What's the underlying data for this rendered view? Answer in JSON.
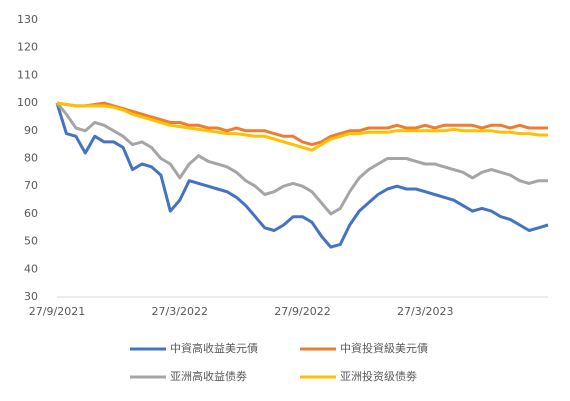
{
  "chart_data": {
    "type": "line",
    "categories": [
      "27/9/2021",
      null,
      null,
      null,
      null,
      null,
      null,
      null,
      null,
      null,
      null,
      null,
      null,
      "27/3/2022",
      null,
      null,
      null,
      null,
      null,
      null,
      null,
      null,
      null,
      null,
      null,
      null,
      "27/9/2022",
      null,
      null,
      null,
      null,
      null,
      null,
      null,
      null,
      null,
      null,
      null,
      null,
      "27/3/2023",
      null,
      null,
      null,
      null,
      null,
      null,
      null,
      null,
      null,
      null,
      null,
      null,
      null
    ],
    "series": [
      {
        "name": "中資高收益美元債",
        "color": "#4472c4",
        "values": [
          100,
          89,
          88,
          82,
          88,
          86,
          86,
          84,
          76,
          78,
          77,
          74,
          61,
          65,
          72,
          71,
          70,
          69,
          68,
          66,
          63,
          59,
          55,
          54,
          56,
          59,
          59,
          57,
          52,
          48,
          49,
          56,
          61,
          64,
          67,
          69,
          70,
          69,
          69,
          68,
          67,
          66,
          65,
          63,
          61,
          62,
          61,
          59,
          58,
          56,
          54,
          55,
          56
        ]
      },
      {
        "name": "中資投資級美元債",
        "color": "#ed7d31",
        "values": [
          100,
          99.5,
          99,
          99,
          99.5,
          100,
          99,
          98,
          97,
          96,
          95,
          94,
          93,
          93,
          92,
          92,
          91,
          91,
          90,
          91,
          90,
          90,
          90,
          89,
          88,
          88,
          86,
          85,
          86,
          88,
          89,
          90,
          90,
          91,
          91,
          91,
          92,
          91,
          91,
          92,
          91,
          92,
          92,
          92,
          92,
          91,
          92,
          92,
          91,
          92,
          91,
          91,
          91
        ]
      },
      {
        "name": "亚洲高收益债劵",
        "color": "#a5a5a5",
        "values": [
          100,
          96,
          91,
          90,
          93,
          92,
          90,
          88,
          85,
          86,
          84,
          80,
          78,
          73,
          78,
          81,
          79,
          78,
          77,
          75,
          72,
          70,
          67,
          68,
          70,
          71,
          70,
          68,
          64,
          60,
          62,
          68,
          73,
          76,
          78,
          80,
          80,
          80,
          79,
          78,
          78,
          77,
          76,
          75,
          73,
          75,
          76,
          75,
          74,
          72,
          71,
          72,
          72
        ]
      },
      {
        "name": "亚洲投资级债劵",
        "color": "#ffc000",
        "values": [
          100,
          99.5,
          99,
          99,
          99,
          99,
          98.5,
          97.5,
          96,
          95,
          94,
          93,
          92,
          91.5,
          91,
          90.5,
          90,
          89.5,
          89,
          89,
          88.5,
          88,
          88,
          87,
          86,
          85,
          84,
          83,
          85,
          87,
          88,
          89,
          89,
          89.5,
          89.5,
          89.5,
          90,
          90,
          90,
          90,
          90,
          90,
          90.5,
          90,
          90,
          90,
          90,
          89.5,
          89.5,
          89,
          89,
          88.5,
          88.5
        ]
      }
    ],
    "ylim": [
      30,
      130
    ],
    "yticks": [
      30,
      40,
      50,
      60,
      70,
      80,
      90,
      100,
      110,
      120,
      130
    ],
    "grid": false,
    "legend": "bottom"
  }
}
